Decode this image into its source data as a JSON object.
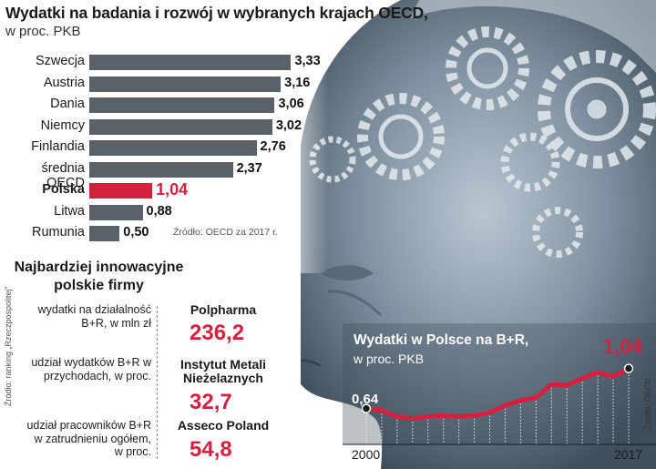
{
  "colors": {
    "bar": "#5a6168",
    "highlight": "#d6203f",
    "background_art": "#2a3a4a"
  },
  "chart_data": [
    {
      "type": "bar",
      "title": "Wydatki na badania i rozwój w wybranych krajach OECD,",
      "subtitle": "w proc. PKB",
      "categories": [
        "Szwecja",
        "Austria",
        "Dania",
        "Niemcy",
        "Finlandia",
        "średnia OECD",
        "Polska",
        "Litwa",
        "Rumunia"
      ],
      "values": [
        3.33,
        3.16,
        3.06,
        3.02,
        2.76,
        2.37,
        1.04,
        0.88,
        0.5
      ],
      "value_labels": [
        "3,33",
        "3,16",
        "3,06",
        "3,02",
        "2,76",
        "2,37",
        "1,04",
        "0,88",
        "0,50"
      ],
      "highlight": "Polska",
      "source": "Źródło: OECD za 2017 r.",
      "orientation": "horizontal"
    },
    {
      "type": "line",
      "title": "Wydatki w Polsce na B+R,",
      "subtitle": "w proc. PKB",
      "x": [
        2000,
        2001,
        2002,
        2003,
        2004,
        2005,
        2006,
        2007,
        2008,
        2009,
        2010,
        2011,
        2012,
        2013,
        2014,
        2015,
        2016,
        2017
      ],
      "values": [
        0.64,
        0.62,
        0.56,
        0.54,
        0.56,
        0.57,
        0.56,
        0.57,
        0.6,
        0.67,
        0.72,
        0.75,
        0.88,
        0.87,
        0.94,
        1.0,
        0.96,
        1.04
      ],
      "x_labels": [
        "2000",
        "2017"
      ],
      "start_label": "0,64",
      "end_label": "1,04",
      "source": "Źródło: OECD"
    }
  ],
  "firms": {
    "title": "Najbardziej innowacyjne polskie firmy",
    "source": "Źródło: ranking „Rzeczpospolitej”",
    "items": [
      {
        "desc": "wydatki na działalność B+R, w mln zł",
        "name": "Polpharma",
        "value": "236,2"
      },
      {
        "desc": "udział wydatków B+R w przychodach, w proc.",
        "name": "Instytut Metali Nieżelaznych",
        "value": "32,7"
      },
      {
        "desc": "udział pracowników B+R w zatrudnieniu ogółem, w proc.",
        "name": "Asseco Poland",
        "value": "54,8"
      }
    ]
  }
}
